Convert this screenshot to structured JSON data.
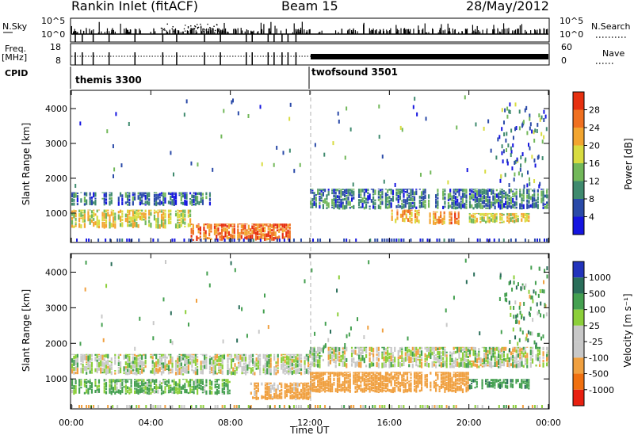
{
  "header": {
    "station": "Rankin Inlet (fitACF)",
    "beam": "Beam 15",
    "date": "28/May/2012"
  },
  "summary": {
    "left_labels": {
      "nsky": "N.Sky",
      "freq": "Freq.",
      "mhz": "[MHz]",
      "cpid": "CPID"
    },
    "right_labels": {
      "nsearch": "N.Search",
      "nave": "Nave"
    },
    "nsky_ticks": {
      "top": "10^5",
      "bottom": "10^0"
    },
    "nsearch_ticks": {
      "top": "10^5",
      "bottom": "10^0"
    },
    "freq_ticks": {
      "top": "18",
      "bottom": "8"
    },
    "nave_ticks": {
      "top": "60",
      "bottom": "0"
    },
    "cpid_segments": [
      {
        "name": "themis 3300",
        "start_hour": 0,
        "end_hour": 12
      },
      {
        "name": "twofsound 3501",
        "start_hour": 12,
        "end_hour": 24
      }
    ]
  },
  "x_axis": {
    "label": "Time UT",
    "ticks": [
      "00:00",
      "04:00",
      "08:00",
      "12:00",
      "16:00",
      "20:00",
      "00:00"
    ]
  },
  "panels": {
    "power": {
      "ylabel": "Slant Range [km]",
      "yticks": [
        "1000",
        "2000",
        "3000",
        "4000"
      ],
      "cbar_label": "Power [dB]",
      "cbar_ticks": [
        "4",
        "8",
        "12",
        "16",
        "20",
        "24",
        "28"
      ],
      "colors": [
        "#1515e0",
        "#2a4aa8",
        "#3f8a6e",
        "#72b85a",
        "#d8dc40",
        "#f2a530",
        "#f07020",
        "#e63010"
      ]
    },
    "velocity": {
      "ylabel": "Slant Range [km]",
      "yticks": [
        "1000",
        "2000",
        "3000",
        "4000"
      ],
      "cbar_label": "Velocity [m s⁻¹]",
      "cbar_ticks": [
        "1000",
        "500",
        "100",
        "25",
        "-25",
        "-100",
        "-500",
        "-1000"
      ],
      "colors": [
        "#2233bb",
        "#2a6e5a",
        "#44a050",
        "#8ccf3a",
        "#c8c8c8",
        "#c8c8c8",
        "#f0a040",
        "#f07010",
        "#e82010"
      ]
    }
  },
  "chart_data": [
    {
      "type": "heatmap",
      "title": "Power",
      "xlabel": "Time UT",
      "ylabel": "Slant Range [km]",
      "xlim": [
        0,
        24
      ],
      "ylim": [
        180,
        4500
      ],
      "colorbar": {
        "label": "Power [dB]",
        "range": [
          0,
          32
        ],
        "ticks": [
          4,
          8,
          12,
          16,
          20,
          24,
          28
        ]
      },
      "bands": [
        {
          "t_start": 0,
          "t_end": 7,
          "r_min": 1200,
          "r_max": 1600,
          "power_db": 8
        },
        {
          "t_start": 0,
          "t_end": 6,
          "r_min": 550,
          "r_max": 1100,
          "power_db": 18
        },
        {
          "t_start": 6,
          "t_end": 11,
          "r_min": 200,
          "r_max": 700,
          "power_db": 26
        },
        {
          "t_start": 12,
          "t_end": 24,
          "r_min": 1100,
          "r_max": 1700,
          "power_db": 9
        },
        {
          "t_start": 16,
          "t_end": 17.5,
          "r_min": 700,
          "r_max": 1100,
          "power_db": 22
        },
        {
          "t_start": 18,
          "t_end": 19.5,
          "r_min": 650,
          "r_max": 1050,
          "power_db": 24
        },
        {
          "t_start": 20,
          "t_end": 23,
          "r_min": 700,
          "r_max": 1000,
          "power_db": 18
        }
      ]
    },
    {
      "type": "heatmap",
      "title": "Velocity",
      "xlabel": "Time UT",
      "ylabel": "Slant Range [km]",
      "xlim": [
        0,
        24
      ],
      "ylim": [
        180,
        4500
      ],
      "colorbar": {
        "label": "Velocity [m s⁻¹]",
        "range": [
          -1000,
          1000
        ],
        "ticks": [
          1000,
          500,
          100,
          25,
          -25,
          -100,
          -500,
          -1000
        ]
      },
      "bands": [
        {
          "t_start": 0,
          "t_end": 12,
          "r_min": 1100,
          "r_max": 1700,
          "velocity": 0
        },
        {
          "t_start": 0,
          "t_end": 8,
          "r_min": 550,
          "r_max": 1000,
          "velocity": 150
        },
        {
          "t_start": 9,
          "t_end": 12,
          "r_min": 400,
          "r_max": 900,
          "velocity": -200
        },
        {
          "t_start": 12,
          "t_end": 24,
          "r_min": 1300,
          "r_max": 1900,
          "velocity": 0
        },
        {
          "t_start": 12,
          "t_end": 20,
          "r_min": 600,
          "r_max": 1200,
          "velocity": -250
        },
        {
          "t_start": 20,
          "t_end": 23,
          "r_min": 700,
          "r_max": 1000,
          "velocity": 400
        }
      ]
    }
  ]
}
